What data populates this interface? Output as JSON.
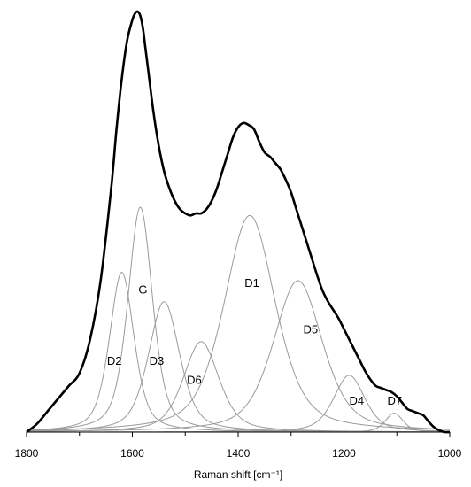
{
  "chart_data": {
    "type": "line",
    "xlabel": "Raman shift [cm⁻¹]",
    "x_reversed": true,
    "xlim": [
      1000,
      1800
    ],
    "ylim": [
      0,
      1
    ],
    "x_ticks": [
      1800,
      1600,
      1400,
      1200,
      1000
    ],
    "x_minor_ticks": [
      1700,
      1500,
      1300,
      1100
    ],
    "y_axis_visible": false,
    "grid": false,
    "colors": {
      "envelope": "#000000",
      "component": "#9a9a9a",
      "axis": "#000000"
    },
    "envelope": {
      "x": [
        1800,
        1780,
        1760,
        1740,
        1720,
        1700,
        1680,
        1660,
        1640,
        1630,
        1620,
        1610,
        1600,
        1595,
        1590,
        1585,
        1580,
        1575,
        1570,
        1560,
        1550,
        1540,
        1530,
        1520,
        1510,
        1500,
        1490,
        1480,
        1470,
        1460,
        1450,
        1440,
        1430,
        1420,
        1410,
        1400,
        1390,
        1380,
        1370,
        1360,
        1350,
        1340,
        1330,
        1320,
        1310,
        1300,
        1290,
        1280,
        1270,
        1260,
        1250,
        1240,
        1230,
        1220,
        1210,
        1200,
        1190,
        1180,
        1170,
        1160,
        1150,
        1140,
        1130,
        1120,
        1110,
        1100,
        1090,
        1080,
        1070,
        1060,
        1050,
        1040,
        1030,
        1020,
        1010,
        1000
      ],
      "y": [
        0.0,
        0.02,
        0.05,
        0.08,
        0.11,
        0.14,
        0.22,
        0.36,
        0.58,
        0.72,
        0.84,
        0.93,
        0.98,
        0.995,
        1.0,
        0.99,
        0.96,
        0.91,
        0.86,
        0.76,
        0.68,
        0.62,
        0.58,
        0.55,
        0.53,
        0.52,
        0.515,
        0.52,
        0.52,
        0.53,
        0.55,
        0.58,
        0.62,
        0.66,
        0.7,
        0.725,
        0.735,
        0.73,
        0.72,
        0.69,
        0.665,
        0.655,
        0.64,
        0.625,
        0.6,
        0.57,
        0.53,
        0.49,
        0.45,
        0.41,
        0.37,
        0.335,
        0.31,
        0.29,
        0.27,
        0.245,
        0.22,
        0.195,
        0.17,
        0.145,
        0.125,
        0.11,
        0.105,
        0.1,
        0.095,
        0.085,
        0.07,
        0.055,
        0.05,
        0.045,
        0.04,
        0.025,
        0.012,
        0.004,
        0.0,
        0.0
      ]
    },
    "components": [
      {
        "name": "G",
        "center": 1585,
        "height": 0.535,
        "fwhm": 55
      },
      {
        "name": "D2",
        "center": 1620,
        "height": 0.38,
        "fwhm": 55
      },
      {
        "name": "D3",
        "center": 1540,
        "height": 0.31,
        "fwhm": 70
      },
      {
        "name": "D6",
        "center": 1470,
        "height": 0.215,
        "fwhm": 80
      },
      {
        "name": "D1",
        "center": 1378,
        "height": 0.515,
        "fwhm": 115
      },
      {
        "name": "D5",
        "center": 1287,
        "height": 0.36,
        "fwhm": 110
      },
      {
        "name": "D4",
        "center": 1190,
        "height": 0.135,
        "fwhm": 70
      },
      {
        "name": "D7",
        "center": 1105,
        "height": 0.045,
        "fwhm": 40
      }
    ],
    "peak_labels": [
      {
        "text": "G",
        "x": 1580,
        "y": 0.33
      },
      {
        "text": "D2",
        "x": 1634,
        "y": 0.16
      },
      {
        "text": "D3",
        "x": 1554,
        "y": 0.16
      },
      {
        "text": "D6",
        "x": 1483,
        "y": 0.115
      },
      {
        "text": "D1",
        "x": 1374,
        "y": 0.345
      },
      {
        "text": "D5",
        "x": 1263,
        "y": 0.235
      },
      {
        "text": "D4",
        "x": 1176,
        "y": 0.065
      },
      {
        "text": "D7",
        "x": 1104,
        "y": 0.065
      }
    ]
  }
}
